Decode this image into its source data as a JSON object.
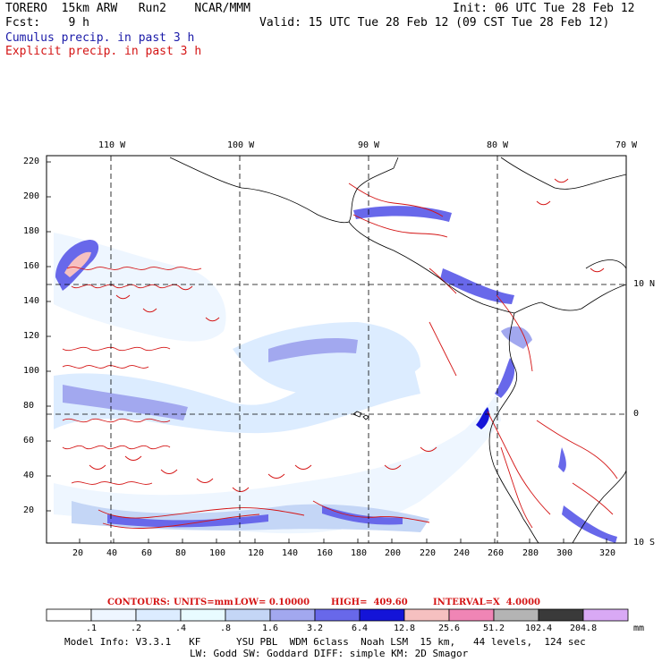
{
  "header": {
    "left_line1": "TORERO  15km ARW   Run2    NCAR/MMM",
    "left_line2": "Fcst:    9 h",
    "right_line1": "Init: 06 UTC Tue 28 Feb 12",
    "right_line2": "Valid: 15 UTC Tue 28 Feb 12 (09 CST Tue 28 Feb 12)",
    "cumulus_label": "Cumulus precip. in past 3 h",
    "explicit_label": "Explicit precip. in past 3 h"
  },
  "map": {
    "top_lon_labels": [
      "110 W",
      "100 W",
      "90 W",
      "80 W",
      "70 W"
    ],
    "right_lat_labels": [
      "10 N",
      "0",
      "10 S"
    ],
    "y_ticks": [
      "220",
      "200",
      "180",
      "160",
      "140",
      "120",
      "100",
      "80",
      "60",
      "40",
      "20"
    ],
    "x_ticks": [
      "20",
      "40",
      "60",
      "80",
      "100",
      "120",
      "140",
      "160",
      "180",
      "200",
      "220",
      "240",
      "260",
      "280",
      "300",
      "320"
    ],
    "colors": {
      "cumulus": "#1a1aa8",
      "explicit": "#d41414",
      "coast": "#000000"
    }
  },
  "contours_line": {
    "label": "CONTOURS:",
    "units": "UNITS=mm",
    "low": "LOW= 0.10000",
    "high": "HIGH=  409.60",
    "interval": "INTERVAL=X  4.0000"
  },
  "colorbar": {
    "labels": [
      ".1",
      ".2",
      ".4",
      ".8",
      "1.6",
      "3.2",
      "6.4",
      "12.8",
      "25.6",
      "51.2",
      "102.4",
      "204.8"
    ],
    "unit": "mm",
    "colors": [
      "#ffffff",
      "#eef6ff",
      "#dcecff",
      "#e8fbff",
      "#c4d6f6",
      "#a2a8ef",
      "#6868ea",
      "#1414d8",
      "#f6c0c0",
      "#f085b5",
      "#b4b4b4",
      "#3a3a3a",
      "#d9a9f5"
    ]
  },
  "footer": {
    "line1": "Model Info: V3.3.1   KF      YSU PBL  WDM 6class  Noah LSM  15 km,   44 levels,  124 sec",
    "line2": "LW: Godd SW: Goddard DIFF: simple KM: 2D Smagor"
  }
}
